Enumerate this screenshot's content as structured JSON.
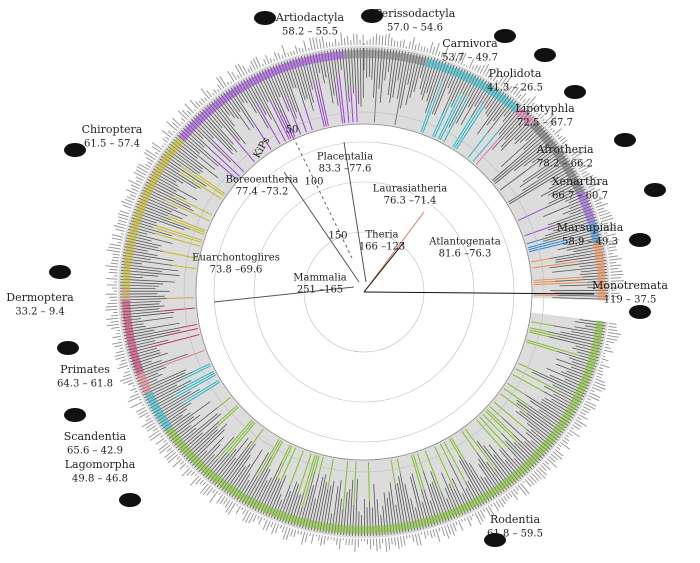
{
  "clades": [
    {
      "name": "Artiodactyla",
      "range": "58.2 – 55.5"
    },
    {
      "name": "Perissodactyla",
      "range": "57.0 – 54.6"
    },
    {
      "name": "Carnivora",
      "range": "53.7 – 49.7"
    },
    {
      "name": "Pholidota",
      "range": "41.3 – 26.5"
    },
    {
      "name": "Lipotyphla",
      "range": "72.5 – 67.7"
    },
    {
      "name": "Afrotheria",
      "range": "78.2 – 66.2"
    },
    {
      "name": "Xenarthra",
      "range": "66.7 – 60.7"
    },
    {
      "name": "Marsupialia",
      "range": "58.9 – 49.3"
    },
    {
      "name": "Monotremata",
      "range": "119 – 37.5"
    },
    {
      "name": "Rodentia",
      "range": "61.8 – 59.5"
    },
    {
      "name": "Lagomorpha",
      "range": "49.8 – 46.8"
    },
    {
      "name": "Scandentia",
      "range": "65.6 – 42.9"
    },
    {
      "name": "Primates",
      "range": "64.3 – 61.8"
    },
    {
      "name": "Dermoptera",
      "range": "33.2 – 9.4"
    },
    {
      "name": "Chiroptera",
      "range": "61.5 – 57.4"
    }
  ],
  "nodes": [
    {
      "name": "Placentalia",
      "range": "83.3 –77.6"
    },
    {
      "name": "Laurasiatheria",
      "range": "76.3 –71.4"
    },
    {
      "name": "Boreoeutheria",
      "range": "77.4 –73.2"
    },
    {
      "name": "Atlantogenata",
      "range": "81.6 –76.3"
    },
    {
      "name": "Theria",
      "range": "166 –123"
    },
    {
      "name": "Euarchontoglires",
      "range": "73.8 –69.6"
    },
    {
      "name": "Mammalia",
      "range": "251 –165"
    }
  ],
  "scale": {
    "unit": "KiPs",
    "ticks": [
      "50",
      "100",
      "150"
    ]
  }
}
